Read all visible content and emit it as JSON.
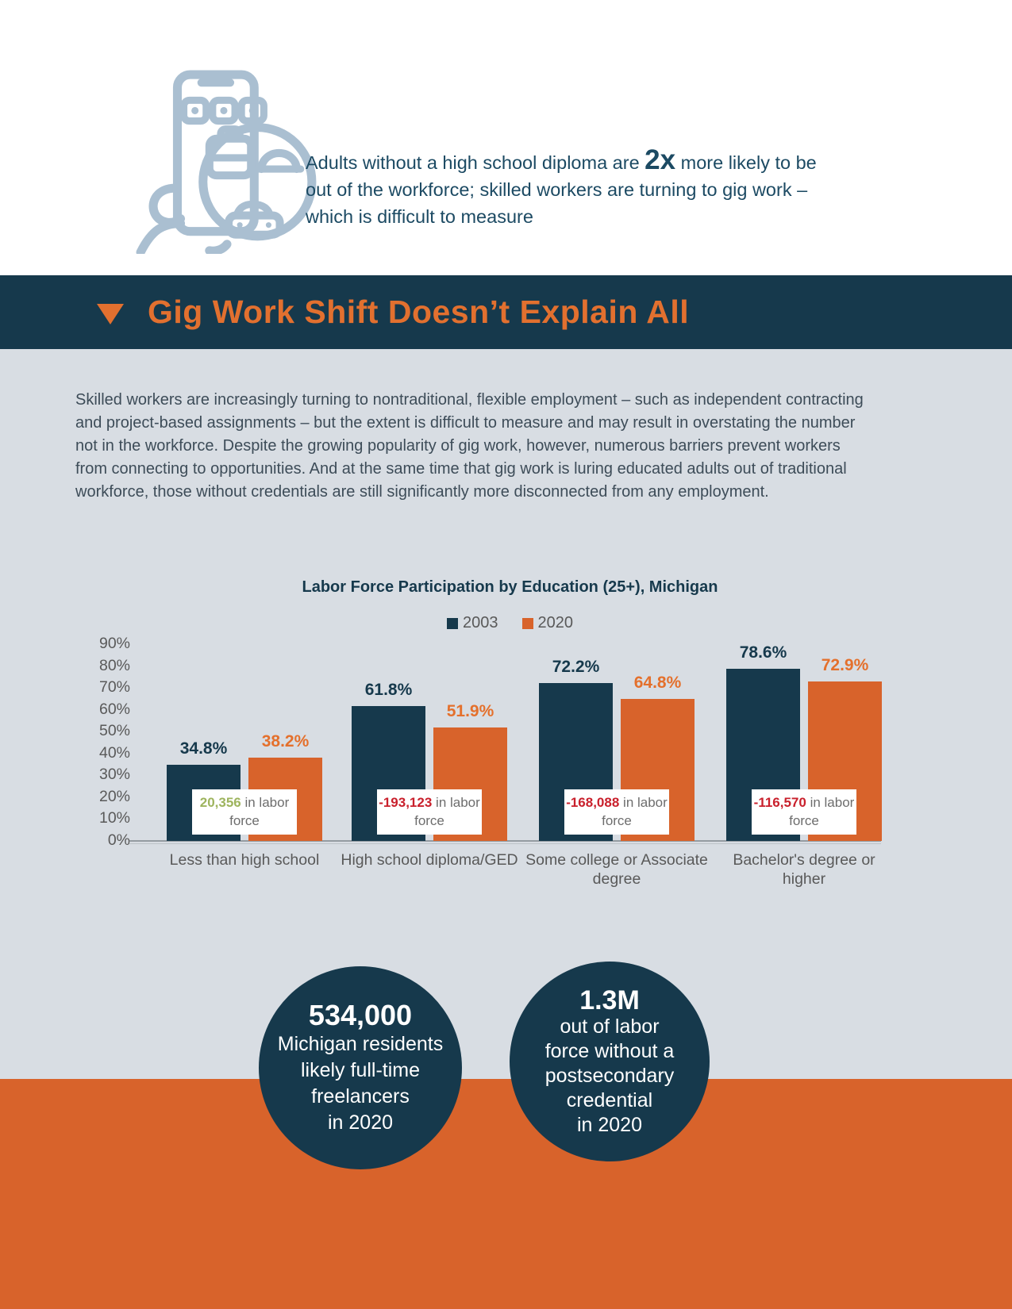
{
  "colors": {
    "navy": "#16394c",
    "orange": "#d8632b",
    "orange_text": "#e2702f",
    "orange_label": "#e4702c",
    "light_bg": "#d8dde3",
    "gray_text": "#595959",
    "green": "#9eb45e",
    "red": "#c9202c",
    "icon_blue": "#aabfd1",
    "intro_navy": "#1c4a63",
    "paragraph_text": "#3d4c58"
  },
  "intro": {
    "icon": "gig-work-phone-icon",
    "text_before": "Adults without a high school diploma are ",
    "highlight": "2x",
    "text_after": " more likely to be out of the workforce; skilled workers are turning to gig work – which is difficult to measure"
  },
  "banner": {
    "icon": "triangle-down-icon",
    "title": "Gig Work Shift Doesn’t Explain All"
  },
  "paragraph": "Skilled workers are increasingly turning to nontraditional, flexible employment – such as independent contracting and project-based assignments – but the extent is difficult to measure and may result in overstating the number not in the workforce. Despite the growing popularity of gig work, however, numerous barriers prevent workers from connecting to opportunities. And at the same time that gig work is luring educated adults out of traditional workforce, those without credentials are still significantly more disconnected from any employment.",
  "chart_data": {
    "type": "bar",
    "title": "Labor Force Participation by Education (25+), Michigan",
    "categories": [
      "Less than high school",
      "High school diploma/GED",
      "Some college or Associate degree",
      "Bachelor's degree or higher"
    ],
    "category_lines": [
      "Less than high school",
      "High school diploma/GED",
      "Some college or Associate\ndegree",
      "Bachelor's degree or\nhigher"
    ],
    "series": [
      {
        "name": "2003",
        "color": "#16394c",
        "label_color": "#16394c",
        "values": [
          34.8,
          61.8,
          72.2,
          78.6
        ]
      },
      {
        "name": "2020",
        "color": "#d8632b",
        "label_color": "#e4702c",
        "values": [
          38.2,
          51.9,
          64.8,
          72.9
        ]
      }
    ],
    "value_suffix": "%",
    "annotations": [
      {
        "value": "20,356",
        "suffix": " in labor force",
        "color": "#9eb45e"
      },
      {
        "value": "-193,123",
        "suffix": " in labor force",
        "color": "#c9202c"
      },
      {
        "value": "-168,088",
        "suffix": " in labor force",
        "color": "#c9202c"
      },
      {
        "value": "-116,570",
        "suffix": " in labor force",
        "color": "#c9202c"
      }
    ],
    "xlabel": "",
    "ylabel": "",
    "ylim": [
      0,
      90
    ],
    "yticks": [
      "90%",
      "80%",
      "70%",
      "60%",
      "50%",
      "40%",
      "30%",
      "20%",
      "10%",
      "0%"
    ],
    "grid": false,
    "legend_position": "top"
  },
  "stats": [
    {
      "value": "534,000",
      "text": "Michigan residents\nlikely full-time\nfreelancers\nin 2020"
    },
    {
      "value": "1.3M",
      "text": "out of labor\nforce without a\npostsecondary\ncredential\nin 2020"
    }
  ]
}
